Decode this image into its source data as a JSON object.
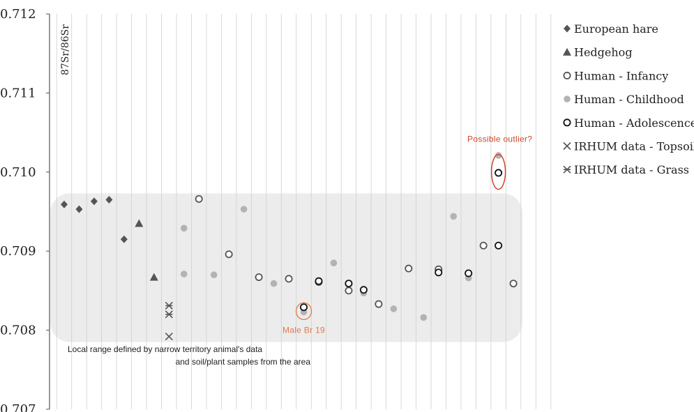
{
  "chart_data": {
    "type": "scatter",
    "title": "",
    "xlabel": "",
    "ylabel": "87Sr/86Sr",
    "ylim": [
      0.707,
      0.712
    ],
    "yticks": [
      0.707,
      0.708,
      0.709,
      0.71,
      0.711,
      0.712
    ],
    "ytick_labels": [
      "0.707",
      "0.708",
      "0.709",
      "0.710",
      "0.711",
      "0.712"
    ],
    "x_categories": 31,
    "grid": "vertical",
    "legend_position": "right",
    "colors": {
      "dark": "#555555",
      "light": "#b3b3b3",
      "black": "#111111",
      "band": "#ececec",
      "accent": "#d0442c"
    },
    "local_range": {
      "y_min": 0.70785,
      "y_max": 0.70973,
      "label_line1": "Local range defined by narrow territory animal's data",
      "label_line2": "and soil/plant samples from the area"
    },
    "series": [
      {
        "name": "European hare",
        "marker": "diamond",
        "x": [
          1,
          2,
          3,
          4,
          5
        ],
        "y": [
          0.70959,
          0.70953,
          0.70963,
          0.70965,
          0.70915
        ]
      },
      {
        "name": "Hedgehog",
        "marker": "triangle",
        "x": [
          6,
          7
        ],
        "y": [
          0.70935,
          0.70867
        ]
      },
      {
        "name": "Human - Infancy",
        "marker": "open-circle-gray",
        "x": [
          10,
          12,
          14,
          16,
          18,
          20,
          22,
          24,
          26,
          29,
          31
        ],
        "y": [
          0.70966,
          0.70896,
          0.70867,
          0.70865,
          0.70861,
          0.7085,
          0.70833,
          0.70878,
          0.70877,
          0.70907,
          0.70859
        ]
      },
      {
        "name": "Human - Childhood",
        "marker": "filled-circle-gray",
        "x": [
          9,
          9,
          11,
          13,
          15,
          17,
          19,
          21,
          23,
          25,
          27,
          28,
          30
        ],
        "y": [
          0.70929,
          0.70871,
          0.7087,
          0.70953,
          0.70859,
          0.70823,
          0.70885,
          0.70847,
          0.70827,
          0.70816,
          0.70944,
          0.70866,
          0.71021
        ]
      },
      {
        "name": "Human - Adolescence",
        "marker": "open-circle-black",
        "x": [
          17,
          18,
          20,
          21,
          26,
          28,
          30,
          30
        ],
        "y": [
          0.70829,
          0.70862,
          0.70859,
          0.70851,
          0.70873,
          0.70872,
          0.70907,
          0.70999
        ]
      },
      {
        "name": "IRHUM data - Topsoil",
        "marker": "x",
        "x": [
          8
        ],
        "y": [
          0.70792
        ]
      },
      {
        "name": "IRHUM data - Grass",
        "marker": "x-bar",
        "x": [
          8,
          8
        ],
        "y": [
          0.70831,
          0.7082
        ]
      }
    ],
    "annotations": [
      {
        "text": "Possible outlier?",
        "x": 30,
        "y": 0.70995,
        "style": "ellipse",
        "color": "#d0442c"
      },
      {
        "text": "Male Br 19",
        "x": 17,
        "y": 0.70824,
        "style": "circle",
        "color": "#e07a4c"
      }
    ]
  }
}
